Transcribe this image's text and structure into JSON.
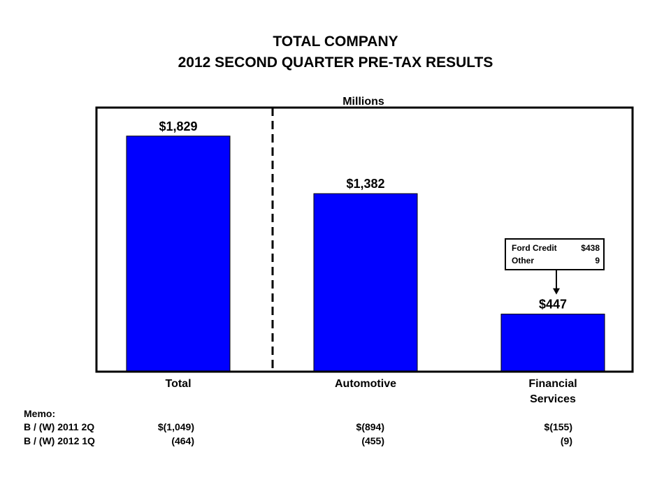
{
  "title_line1": "TOTAL COMPANY",
  "title_line2": "2012 SECOND QUARTER PRE-TAX RESULTS",
  "units": "Millions",
  "colors": {
    "bar": "#0000FF",
    "frame": "#000000"
  },
  "chart_data": {
    "type": "bar",
    "title": "TOTAL COMPANY 2012 SECOND QUARTER PRE-TAX RESULTS",
    "ylabel": "Millions",
    "xlabel": "",
    "ylim": [
      0,
      2050
    ],
    "grid": false,
    "categories": [
      "Total",
      "Automotive",
      "Financial Services"
    ],
    "category_lines": [
      [
        "Total"
      ],
      [
        "Automotive"
      ],
      [
        "Financial",
        "Services"
      ]
    ],
    "values": [
      1829,
      1382,
      447
    ],
    "value_labels": [
      "$1,829",
      "$1,382",
      "$447"
    ],
    "annotation": {
      "target": "Financial Services",
      "rows": [
        {
          "label": "Ford Credit",
          "value": "$438"
        },
        {
          "label": "Other",
          "value": "9"
        }
      ]
    }
  },
  "memo": {
    "heading": "Memo:",
    "rows": [
      {
        "label": "B / (W) 2011 2Q",
        "values": [
          "$(1,049)",
          "$(894)",
          "$(155)"
        ]
      },
      {
        "label": "B / (W) 2012 1Q",
        "values": [
          "(464)",
          "(455)",
          "(9)"
        ]
      }
    ]
  }
}
